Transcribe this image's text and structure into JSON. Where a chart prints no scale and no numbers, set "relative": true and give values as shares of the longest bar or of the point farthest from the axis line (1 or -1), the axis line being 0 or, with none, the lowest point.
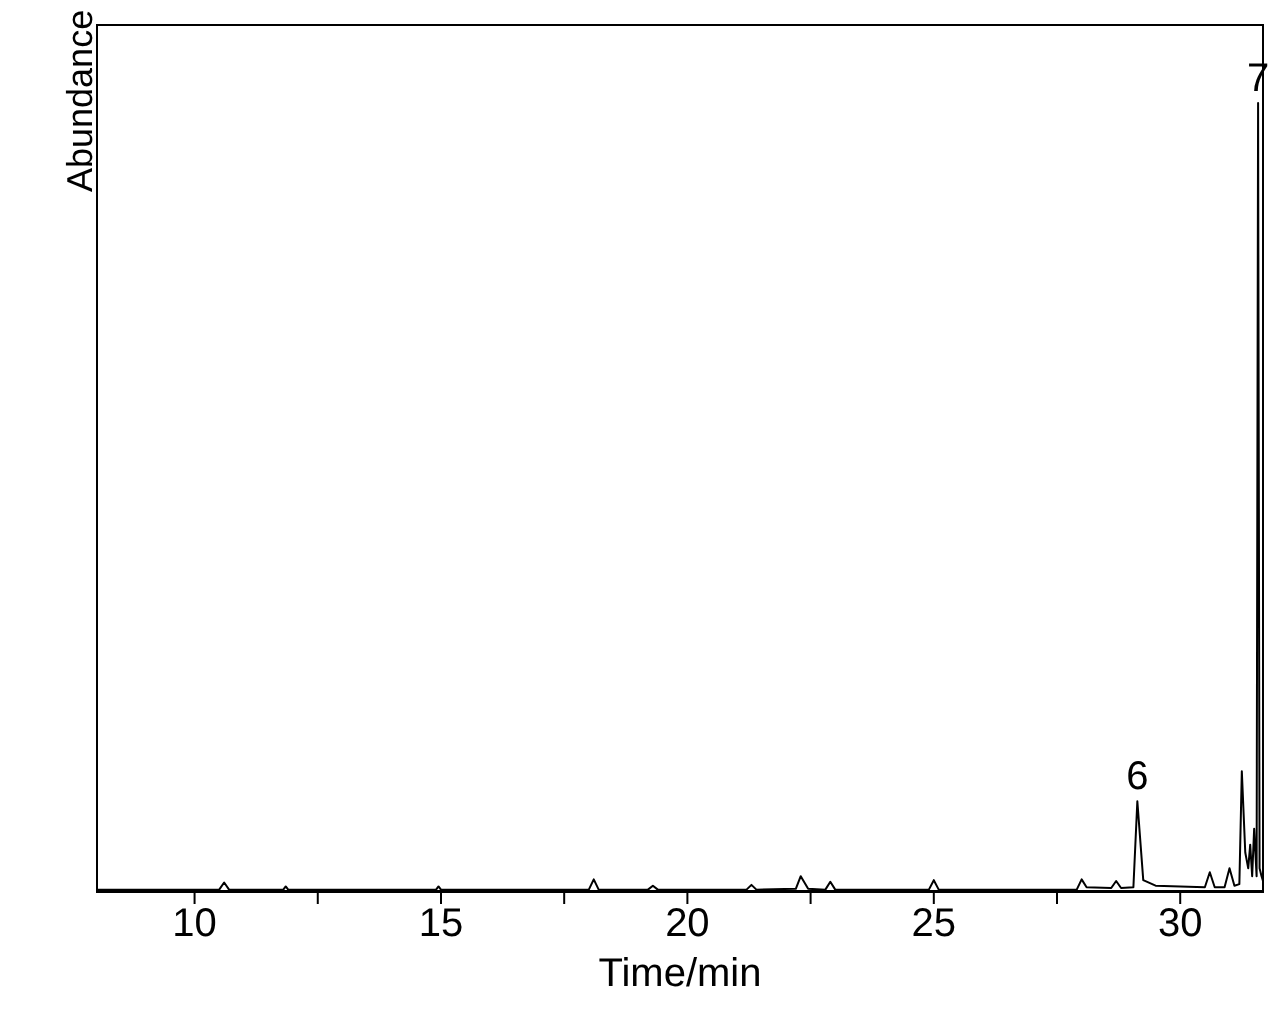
{
  "chart_data": {
    "type": "line",
    "xlabel": "Time/min",
    "ylabel": "Abundance",
    "relative": true,
    "marker": "none",
    "xlim": [
      8,
      31.7
    ],
    "xticks": [
      10,
      {
        "value": 12.5,
        "label": null
      },
      15,
      {
        "value": 17.5,
        "label": null
      },
      20,
      {
        "value": 22.5,
        "label": null
      },
      25,
      {
        "value": 27.5,
        "label": null
      },
      30
    ],
    "series": [
      {
        "color": "#000000",
        "x": [
          8.0,
          10.5,
          10.6,
          10.7,
          11.8,
          11.85,
          11.9,
          14.9,
          14.95,
          15.0,
          18.0,
          18.1,
          18.2,
          19.2,
          19.3,
          19.4,
          21.2,
          21.3,
          21.4,
          22.2,
          22.3,
          22.45,
          22.8,
          22.9,
          23.0,
          24.9,
          25.0,
          25.1,
          27.9,
          28.0,
          28.1,
          28.6,
          28.7,
          28.8,
          29.05,
          29.13,
          29.25,
          29.5,
          30.5,
          30.6,
          30.7,
          30.9,
          31.0,
          31.1,
          31.2,
          31.25,
          31.32,
          31.38,
          31.42,
          31.46,
          31.5,
          31.55,
          31.58,
          31.61,
          31.65,
          31.7
        ],
        "values": [
          0.003,
          0.003,
          0.012,
          0.003,
          0.003,
          0.007,
          0.003,
          0.003,
          0.007,
          0.003,
          0.003,
          0.016,
          0.003,
          0.003,
          0.008,
          0.003,
          0.003,
          0.009,
          0.003,
          0.004,
          0.02,
          0.004,
          0.003,
          0.013,
          0.003,
          0.003,
          0.015,
          0.003,
          0.003,
          0.016,
          0.006,
          0.005,
          0.014,
          0.005,
          0.006,
          0.115,
          0.015,
          0.008,
          0.006,
          0.025,
          0.006,
          0.006,
          0.03,
          0.008,
          0.01,
          0.153,
          0.05,
          0.03,
          0.06,
          0.02,
          0.08,
          0.02,
          1,
          0.03,
          0.02,
          0.01
        ]
      }
    ],
    "annotations": [
      {
        "text": "6",
        "x": 29.13,
        "y": 0.115
      },
      {
        "text": "7",
        "x": 31.58,
        "y": 1
      }
    ]
  }
}
